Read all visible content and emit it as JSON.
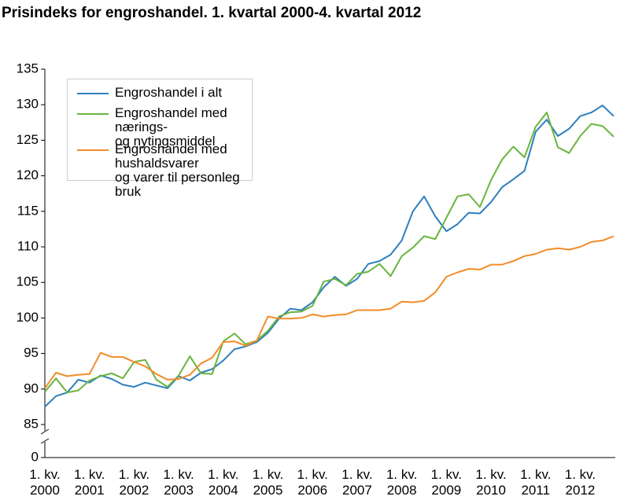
{
  "chart_data": {
    "type": "line",
    "title": "Prisindeks for engroshandel. 1. kvartal 2000-4. kvartal 2012",
    "categories": [
      "1. kv. 2000",
      null,
      null,
      null,
      "1. kv. 2001",
      null,
      null,
      null,
      "1. kv. 2002",
      null,
      null,
      null,
      "1. kv. 2003",
      null,
      null,
      null,
      "1. kv. 2004",
      null,
      null,
      null,
      "1. kv. 2005",
      null,
      null,
      null,
      "1. kv. 2006",
      null,
      null,
      null,
      "1. kv. 2007",
      null,
      null,
      null,
      "1. kv. 2008",
      null,
      null,
      null,
      "1. kv. 2009",
      null,
      null,
      null,
      "1. kv. 2010",
      null,
      null,
      null,
      "1. kv. 2011",
      null,
      null,
      null,
      "1. kv. 2012",
      null,
      null,
      null
    ],
    "series": [
      {
        "name": "Engroshandel i alt",
        "color": "#2e7fbd",
        "values": [
          87.5,
          89.0,
          89.5,
          91.3,
          90.9,
          91.9,
          91.4,
          90.6,
          90.3,
          90.9,
          90.5,
          90.1,
          91.8,
          91.2,
          92.3,
          92.8,
          94.0,
          95.6,
          96.0,
          96.6,
          97.9,
          99.9,
          101.3,
          101.1,
          102.2,
          104.3,
          105.8,
          104.5,
          105.5,
          107.6,
          108.0,
          108.9,
          110.9,
          115.0,
          117.1,
          114.3,
          112.2,
          113.2,
          114.8,
          114.7,
          116.3,
          118.4,
          119.5,
          120.7,
          126.2,
          127.9,
          125.6,
          126.6,
          128.4,
          128.9,
          129.9,
          128.4
        ]
      },
      {
        "name": "Engroshandel med nærings-\nog nytingsmiddel",
        "color": "#6ab43e",
        "values": [
          89.6,
          91.5,
          89.5,
          89.8,
          91.2,
          91.8,
          92.2,
          91.5,
          93.8,
          94.1,
          91.3,
          90.3,
          91.9,
          94.6,
          92.2,
          92.1,
          96.7,
          97.8,
          96.3,
          96.8,
          98.2,
          100.2,
          100.8,
          100.9,
          101.7,
          105.1,
          105.5,
          104.6,
          106.2,
          106.5,
          107.6,
          105.9,
          108.7,
          109.9,
          111.5,
          111.1,
          114.1,
          117.1,
          117.4,
          115.6,
          119.4,
          122.3,
          124.1,
          122.6,
          126.9,
          128.9,
          124.0,
          123.2,
          125.6,
          127.3,
          127.0,
          125.5
        ]
      },
      {
        "name": "Engroshandel med hushaldsvarer\nog varer til personleg bruk",
        "color": "#f28c28",
        "values": [
          90.1,
          92.3,
          91.8,
          92.0,
          92.1,
          95.1,
          94.5,
          94.5,
          93.8,
          93.2,
          92.1,
          91.3,
          91.4,
          92.0,
          93.6,
          94.4,
          96.6,
          96.7,
          96.1,
          96.8,
          100.2,
          99.9,
          99.9,
          100.0,
          100.5,
          100.2,
          100.4,
          100.5,
          101.1,
          101.1,
          101.1,
          101.3,
          102.3,
          102.2,
          102.4,
          103.6,
          105.8,
          106.4,
          106.9,
          106.8,
          107.5,
          107.5,
          108.0,
          108.7,
          109.0,
          109.6,
          109.8,
          109.6,
          110.0,
          110.7,
          110.9,
          111.5
        ]
      }
    ],
    "ylim": [
      0,
      135
    ],
    "y_break": [
      0,
      85
    ],
    "yticks": [
      0,
      85,
      90,
      95,
      100,
      105,
      110,
      115,
      120,
      125,
      130,
      135
    ],
    "grid": false,
    "legend": "upper left"
  }
}
